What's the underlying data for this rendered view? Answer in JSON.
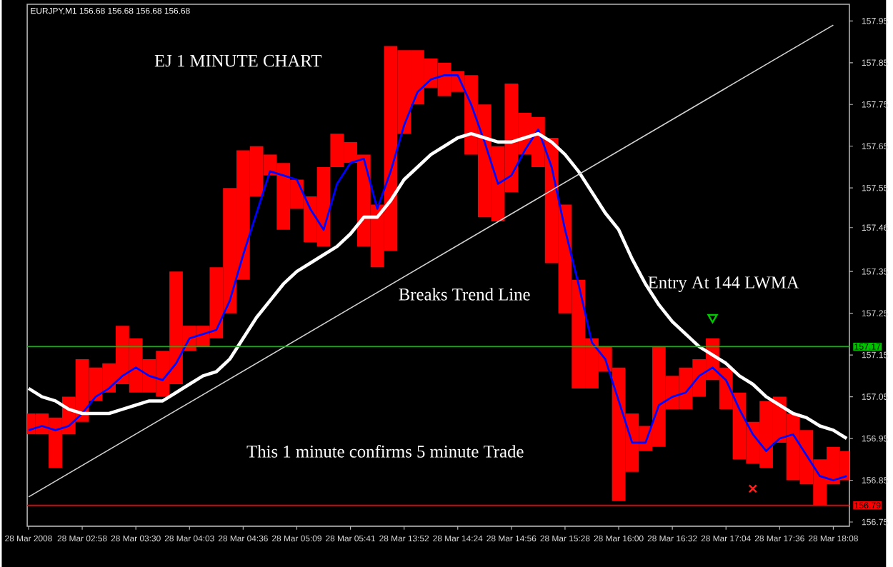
{
  "chart_data": {
    "type": "bar",
    "title": "EJ 1 MINUTE CHART",
    "annotations": [
      "EURJPY,M1 156.68 156.68 156.68 156.68",
      "Breaks Trend Line",
      "Entry At 144 LWMA",
      "This 1 minute confirms 5 minute Trade"
    ],
    "categories": [
      "28 Mar 2008",
      null,
      null,
      null,
      "28 Mar 02:58",
      null,
      null,
      null,
      "28 Mar 03:30",
      null,
      null,
      null,
      "28 Mar 04:03",
      null,
      null,
      null,
      "28 Mar 04:36",
      null,
      null,
      null,
      "28 Mar 05:09",
      null,
      null,
      null,
      "28 Mar 05:41",
      null,
      null,
      null,
      "28 Mar 13:52",
      null,
      null,
      null,
      "28 Mar 14:24",
      null,
      null,
      null,
      "28 Mar 14:56",
      null,
      null,
      null,
      "28 Mar 15:28",
      null,
      null,
      null,
      "28 Mar 16:00",
      null,
      null,
      null,
      "28 Mar 16:32",
      null,
      null,
      null,
      "28 Mar 17:04",
      null,
      null,
      null,
      "28 Mar 17:36",
      null,
      null,
      null,
      "28 Mar 18:08",
      null
    ],
    "series": [
      {
        "color": "#ff0000",
        "base": [
          156.96,
          156.96,
          156.88,
          156.96,
          156.99,
          157.04,
          157.06,
          157.08,
          157.06,
          157.06,
          157.05,
          157.08,
          157.16,
          157.17,
          157.19,
          157.25,
          157.33,
          157.53,
          157.58,
          157.45,
          157.5,
          157.42,
          157.41,
          157.6,
          157.61,
          157.41,
          157.36,
          157.4,
          157.68,
          157.75,
          157.79,
          157.77,
          157.78,
          157.63,
          157.48,
          157.47,
          157.54,
          157.63,
          157.6,
          157.37,
          157.25,
          157.07,
          157.07,
          157.11,
          156.8,
          156.87,
          156.92,
          156.93,
          157.02,
          157.02,
          157.05,
          157.09,
          157.02,
          156.9,
          156.89,
          156.88,
          156.94,
          156.85,
          156.84,
          156.79,
          156.84,
          156.85
        ],
        "values": [
          0.05,
          0.05,
          0.12,
          0.09,
          0.15,
          0.08,
          0.07,
          0.14,
          0.13,
          0.08,
          0.11,
          0.27,
          0.06,
          0.05,
          0.17,
          0.3,
          0.31,
          0.12,
          0.05,
          0.16,
          0.07,
          0.11,
          0.19,
          0.08,
          0.05,
          0.22,
          0.15,
          0.49,
          0.2,
          0.13,
          0.07,
          0.08,
          0.05,
          0.19,
          0.27,
          0.18,
          0.26,
          0.1,
          0.12,
          0.3,
          0.26,
          0.26,
          0.12,
          0.06,
          0.32,
          0.14,
          0.06,
          0.24,
          0.08,
          0.1,
          0.09,
          0.1,
          0.1,
          0.16,
          0.1,
          0.16,
          0.11,
          0.16,
          0.13,
          0.11,
          0.09,
          0.07
        ]
      },
      {
        "type": "line",
        "color": "#0000ff",
        "values": [
          156.97,
          156.98,
          156.97,
          156.98,
          157.01,
          157.05,
          157.07,
          157.1,
          157.12,
          157.1,
          157.09,
          157.13,
          157.19,
          157.2,
          157.21,
          157.28,
          157.39,
          157.49,
          157.59,
          157.58,
          157.57,
          157.5,
          157.45,
          157.56,
          157.61,
          157.62,
          157.5,
          157.59,
          157.7,
          157.78,
          157.81,
          157.82,
          157.82,
          157.75,
          157.66,
          157.56,
          157.58,
          157.64,
          157.69,
          157.6,
          157.45,
          157.32,
          157.18,
          157.14,
          157.04,
          156.94,
          156.94,
          157.03,
          157.05,
          157.06,
          157.1,
          157.12,
          157.09,
          157.02,
          156.96,
          156.92,
          156.95,
          156.96,
          156.91,
          156.86,
          156.85,
          156.86
        ]
      },
      {
        "type": "line",
        "color": "#ffffff",
        "values": [
          157.07,
          157.05,
          157.04,
          157.02,
          157.01,
          157.01,
          157.01,
          157.02,
          157.03,
          157.04,
          157.04,
          157.06,
          157.08,
          157.1,
          157.11,
          157.14,
          157.19,
          157.24,
          157.28,
          157.32,
          157.35,
          157.37,
          157.39,
          157.41,
          157.44,
          157.48,
          157.48,
          157.52,
          157.57,
          157.6,
          157.63,
          157.65,
          157.67,
          157.68,
          157.67,
          157.66,
          157.66,
          157.67,
          157.68,
          157.66,
          157.63,
          157.59,
          157.54,
          157.49,
          157.45,
          157.38,
          157.32,
          157.27,
          157.23,
          157.2,
          157.17,
          157.15,
          157.13,
          157.1,
          157.08,
          157.05,
          157.03,
          157.01,
          157.0,
          156.98,
          156.97,
          156.95
        ]
      },
      {
        "type": "line",
        "color": "#d2d2d2",
        "x": [
          "28 Mar 2008",
          "28 Mar 18:08"
        ],
        "values": [
          156.81,
          157.94
        ]
      },
      {
        "type": "scatter",
        "color": "#ff2020",
        "marker": "cross",
        "values": [
          null,
          null,
          null,
          null,
          null,
          null,
          null,
          null,
          null,
          null,
          null,
          null,
          null,
          null,
          null,
          null,
          null,
          null,
          null,
          null,
          null,
          null,
          null,
          null,
          null,
          null,
          null,
          null,
          null,
          null,
          null,
          null,
          null,
          null,
          null,
          null,
          null,
          null,
          null,
          null,
          null,
          null,
          null,
          null,
          null,
          null,
          null,
          null,
          null,
          null,
          null,
          null,
          null,
          null,
          156.83,
          null,
          null,
          null,
          null,
          null,
          null,
          null
        ]
      },
      {
        "type": "scatter",
        "color": "#00c800",
        "marker": "triangle",
        "values": [
          null,
          null,
          null,
          null,
          null,
          null,
          null,
          null,
          null,
          null,
          null,
          null,
          null,
          null,
          null,
          null,
          null,
          null,
          null,
          null,
          null,
          null,
          null,
          null,
          null,
          null,
          null,
          null,
          null,
          null,
          null,
          null,
          null,
          null,
          null,
          null,
          null,
          null,
          null,
          null,
          null,
          null,
          null,
          null,
          null,
          null,
          null,
          null,
          null,
          null,
          null,
          157.24,
          null,
          null,
          null,
          null,
          null,
          null,
          null,
          null,
          null,
          null
        ]
      }
    ],
    "ref_lines": [
      {
        "axis": "y",
        "value": 157.17,
        "label": "157.17",
        "color": "#00c000"
      },
      {
        "axis": "y",
        "value": 156.79,
        "label": "156.79",
        "color": "#ff0000"
      }
    ],
    "ylim": [
      156.74,
      157.99
    ],
    "yticks": [
      156.75,
      156.85,
      156.95,
      157.05,
      157.15,
      157.25,
      157.35,
      {
        "value": 157.455,
        "label": "157.46"
      },
      157.55,
      157.65,
      157.75,
      157.85,
      157.95
    ]
  }
}
